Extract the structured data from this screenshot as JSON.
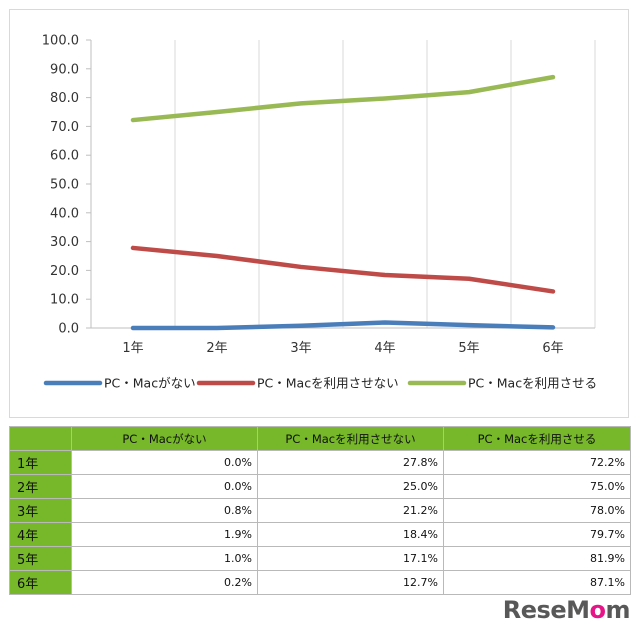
{
  "chart_data": {
    "type": "line",
    "categories": [
      "1年",
      "2年",
      "3年",
      "4年",
      "5年",
      "6年"
    ],
    "series": [
      {
        "name": "PC・Macがない",
        "color": "#4a7ebb",
        "values": [
          0.0,
          0.0,
          0.8,
          1.9,
          1.0,
          0.2
        ]
      },
      {
        "name": "PC・Macを利用させない",
        "color": "#be4b48",
        "values": [
          27.8,
          25.0,
          21.2,
          18.4,
          17.1,
          12.7
        ]
      },
      {
        "name": "PC・Macを利用させる",
        "color": "#98b954",
        "values": [
          72.2,
          75.0,
          78.0,
          79.7,
          81.9,
          87.1
        ]
      }
    ],
    "ylim": [
      0,
      100
    ],
    "yticks": [
      "0.0",
      "10.0",
      "20.0",
      "30.0",
      "40.0",
      "50.0",
      "60.0",
      "70.0",
      "80.0",
      "90.0",
      "100.0"
    ],
    "grid": "vertical",
    "legend": "bottom"
  },
  "table": {
    "headers": [
      "PC・Macがない",
      "PC・Macを利用させない",
      "PC・Macを利用させる"
    ],
    "rows": [
      {
        "label": "1年",
        "cells": [
          "0.0%",
          "27.8%",
          "72.2%"
        ]
      },
      {
        "label": "2年",
        "cells": [
          "0.0%",
          "25.0%",
          "75.0%"
        ]
      },
      {
        "label": "3年",
        "cells": [
          "0.8%",
          "21.2%",
          "78.0%"
        ]
      },
      {
        "label": "4年",
        "cells": [
          "1.9%",
          "18.4%",
          "79.7%"
        ]
      },
      {
        "label": "5年",
        "cells": [
          "1.0%",
          "17.1%",
          "81.9%"
        ]
      },
      {
        "label": "6年",
        "cells": [
          "0.2%",
          "12.7%",
          "87.1%"
        ]
      }
    ],
    "header_color": "#76b82a"
  },
  "watermark": {
    "prefix": "ResеM",
    "accent": "o",
    "suffix": "m"
  }
}
